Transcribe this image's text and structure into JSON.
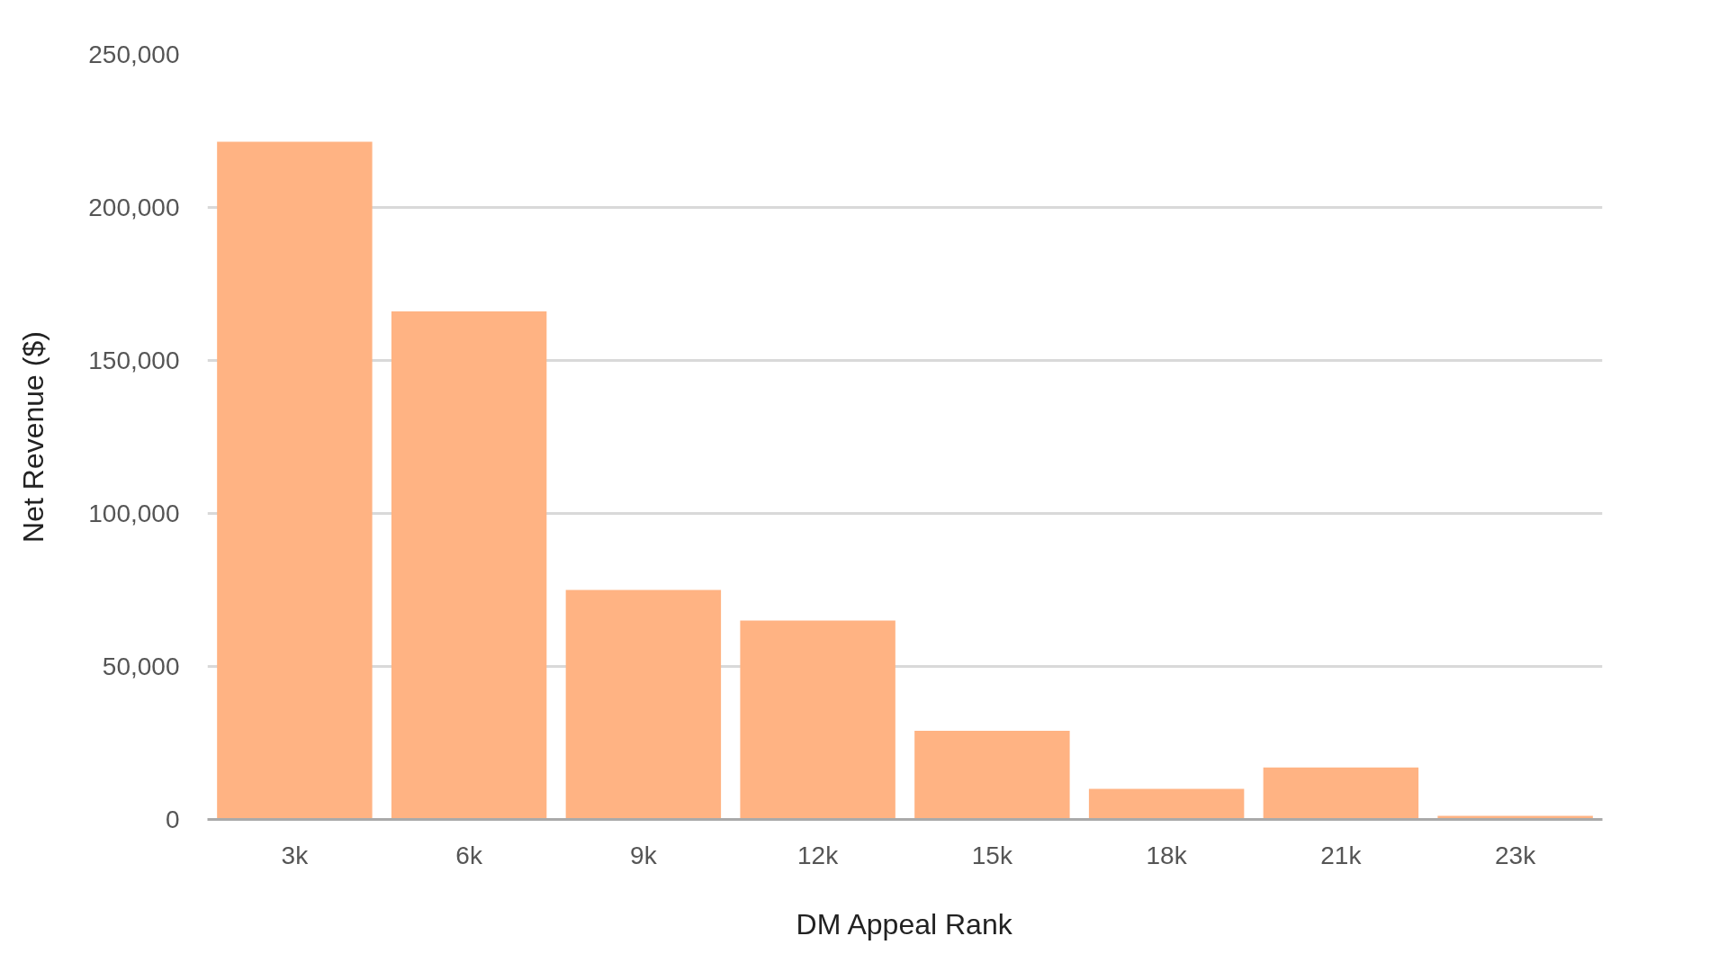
{
  "chart_data": {
    "type": "bar",
    "xlabel": "DM Appeal Rank",
    "ylabel": "Net Revenue ($)",
    "categories": [
      "3k",
      "6k",
      "9k",
      "12k",
      "15k",
      "18k",
      "21k",
      "23k"
    ],
    "values": [
      221500,
      166000,
      75000,
      65000,
      29000,
      10000,
      17000,
      1200
    ],
    "color": "#ffb383",
    "ylim": [
      0,
      250000
    ],
    "yticks": [
      0,
      {
        "value": 50000,
        "label": "50,000"
      },
      {
        "value": 100000,
        "label": "100,000"
      },
      {
        "value": 150000,
        "label": "150,000"
      },
      {
        "value": 200000,
        "label": "200,000"
      },
      {
        "value": 250000,
        "label": "250,000"
      }
    ],
    "grid": "y"
  }
}
